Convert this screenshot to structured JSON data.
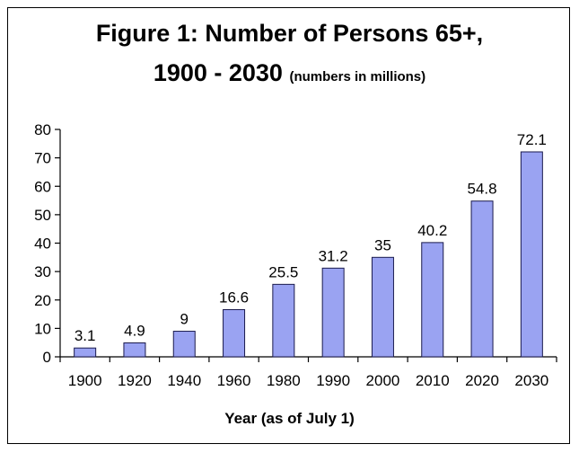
{
  "chart_data": {
    "type": "bar",
    "title": "Figure 1: Number of Persons 65+,",
    "title_line2": "1900 - 2030",
    "subtitle": "(numbers in millions)",
    "xlabel": "Year (as of July 1)",
    "ylabel": "",
    "categories": [
      "1900",
      "1920",
      "1940",
      "1960",
      "1980",
      "1990",
      "2000",
      "2010",
      "2020",
      "2030"
    ],
    "values": [
      3.1,
      4.9,
      9,
      16.6,
      25.5,
      31.2,
      35,
      40.2,
      54.8,
      72.1
    ],
    "value_labels": [
      "3.1",
      "4.9",
      "9",
      "16.6",
      "25.5",
      "31.2",
      "35",
      "40.2",
      "54.8",
      "72.1"
    ],
    "yticks": [
      0,
      10,
      20,
      30,
      40,
      50,
      60,
      70,
      80
    ],
    "ylim": [
      0,
      80
    ],
    "grid": false,
    "legend": "none",
    "bar_color": "#9aa3f2",
    "bar_edge_color": "#1a1a4d"
  }
}
